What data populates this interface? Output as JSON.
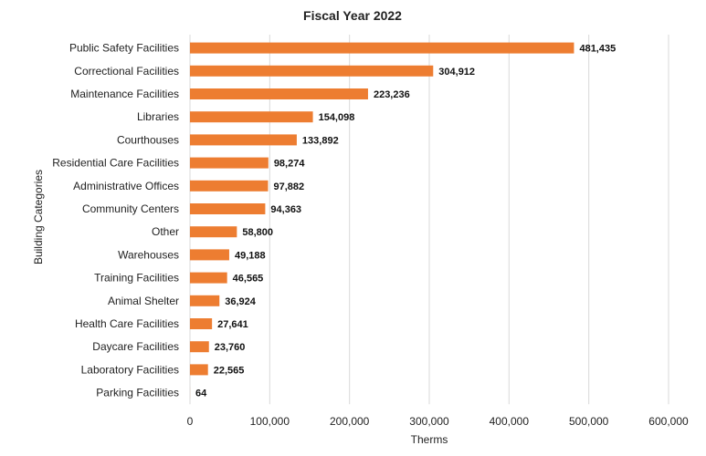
{
  "chart_data": {
    "type": "bar",
    "orientation": "horizontal",
    "title": "Fiscal Year 2022",
    "xlabel": "Therms",
    "ylabel": "Building Categories",
    "categories": [
      "Public Safety Facilities",
      "Correctional Facilities",
      "Maintenance Facilities",
      "Libraries",
      "Courthouses",
      "Residential Care Facilities",
      "Administrative Offices",
      "Community Centers",
      "Other",
      "Warehouses",
      "Training Facilities",
      "Animal Shelter",
      "Health Care Facilities",
      "Daycare Facilities",
      "Laboratory Facilities",
      "Parking Facilities"
    ],
    "values": [
      481435,
      304912,
      223236,
      154098,
      133892,
      98274,
      97882,
      94363,
      58800,
      49188,
      46565,
      36924,
      27641,
      23760,
      22565,
      64
    ],
    "value_labels": [
      "481,435",
      "304,912",
      "223,236",
      "154,098",
      "133,892",
      "98,274",
      "97,882",
      "94,363",
      "58,800",
      "49,188",
      "46,565",
      "36,924",
      "27,641",
      "23,760",
      "22,565",
      "64"
    ],
    "xlim": [
      0,
      600000
    ],
    "xticks": [
      0,
      100000,
      200000,
      300000,
      400000,
      500000,
      600000
    ],
    "xtick_labels": [
      "0",
      "100,000",
      "200,000",
      "300,000",
      "400,000",
      "500,000",
      "600,000"
    ],
    "grid": true,
    "legend": "none",
    "bar_color": "#ed7d31"
  }
}
